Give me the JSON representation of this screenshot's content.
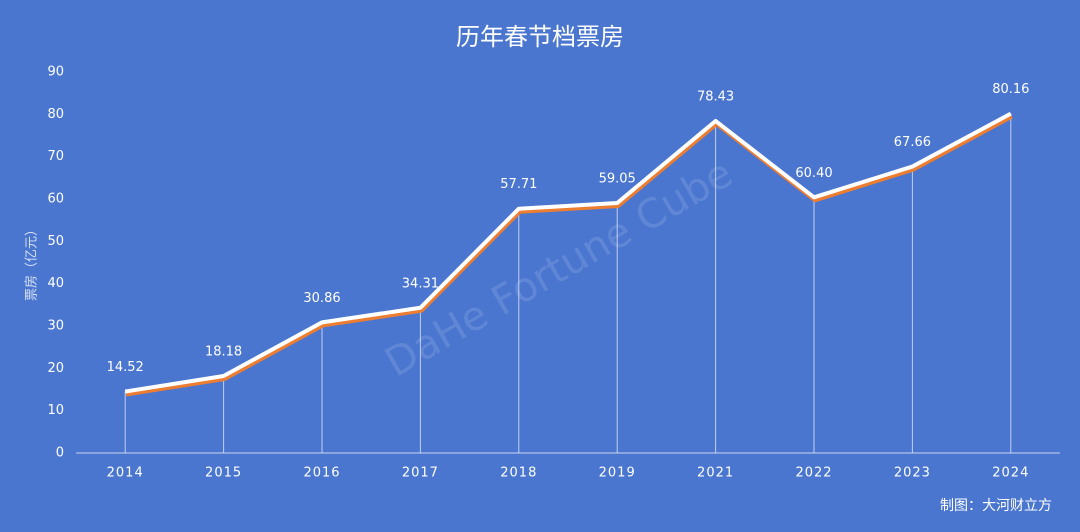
{
  "chart_data": {
    "type": "line",
    "title": "历年春节档票房",
    "y_label": "票房（亿元）",
    "source": "制图：大河财立方",
    "watermark": "DaHe Fortune Cube",
    "categories": [
      "2014",
      "2015",
      "2016",
      "2017",
      "2018",
      "2019",
      "2021",
      "2022",
      "2023",
      "2024"
    ],
    "values": [
      14.52,
      18.18,
      30.86,
      34.31,
      57.71,
      59.05,
      78.43,
      60.4,
      67.66,
      80.16
    ],
    "value_labels": [
      "14.52",
      "18.18",
      "30.86",
      "34.31",
      "57.71",
      "59.05",
      "78.43",
      "60.40",
      "67.66",
      "80.16"
    ],
    "color": "#ffffff",
    "shadow_color": "#ed7d31",
    "drop_lines": true,
    "ylim": [
      0,
      90
    ],
    "yticks": [
      0,
      10,
      20,
      30,
      40,
      50,
      60,
      70,
      80,
      90
    ]
  }
}
